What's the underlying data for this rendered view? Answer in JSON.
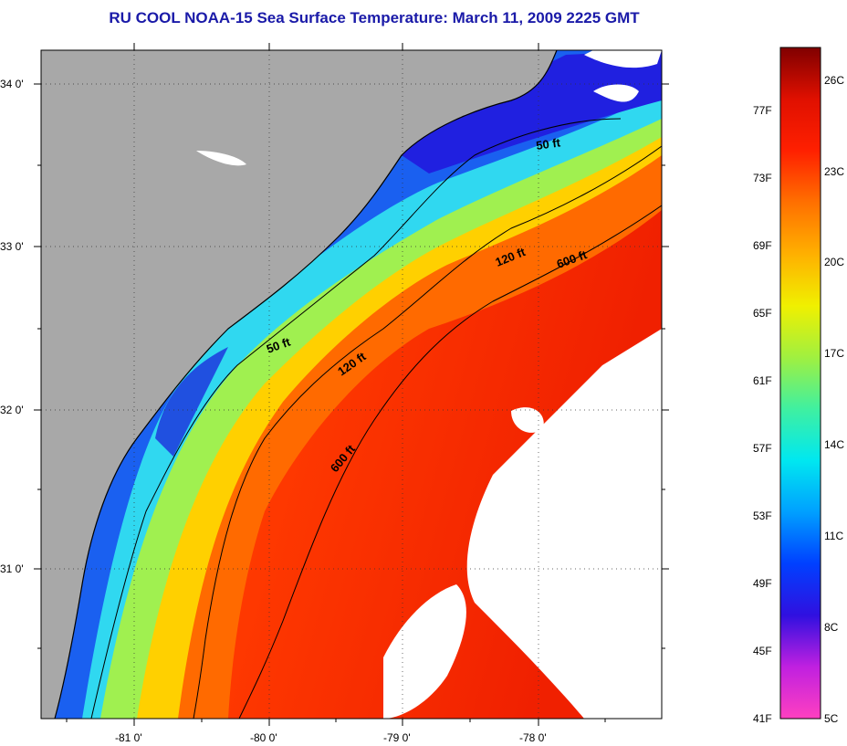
{
  "title": "RU COOL  NOAA-15  Sea Surface Temperature:  March 11, 2009 2225 GMT",
  "map": {
    "lat_ticks": [
      "34 0'",
      "33 0'",
      "32 0'",
      "31 0'"
    ],
    "lon_ticks": [
      "-81 0'",
      "-80 0'",
      "-79 0'",
      "-78 0'"
    ],
    "contour_labels": [
      "50 ft",
      "120 ft",
      "600 ft",
      "50 ft",
      "120 ft",
      "600 ft"
    ],
    "colors": {
      "land": "#a8a8a8",
      "cloud": "#ffffff",
      "cold": "#1030e0",
      "cyan": "#20d8f0",
      "yellow": "#f0f000",
      "orange": "#ff7000",
      "red": "#f02000"
    }
  },
  "colorbar": {
    "fahrenheit_labels": [
      "77F",
      "73F",
      "69F",
      "65F",
      "61F",
      "57F",
      "53F",
      "49F",
      "45F",
      "41F"
    ],
    "celsius_labels": [
      "26C",
      "23C",
      "20C",
      "17C",
      "14C",
      "11C",
      "8C",
      "5C"
    ],
    "colors": [
      "#ff40c0",
      "#c020e0",
      "#3010e0",
      "#0040ff",
      "#00a0ff",
      "#00e8f0",
      "#40f0a0",
      "#a0f040",
      "#f0f000",
      "#ffb000",
      "#ff7000",
      "#ff2000",
      "#e01000",
      "#800000"
    ]
  }
}
